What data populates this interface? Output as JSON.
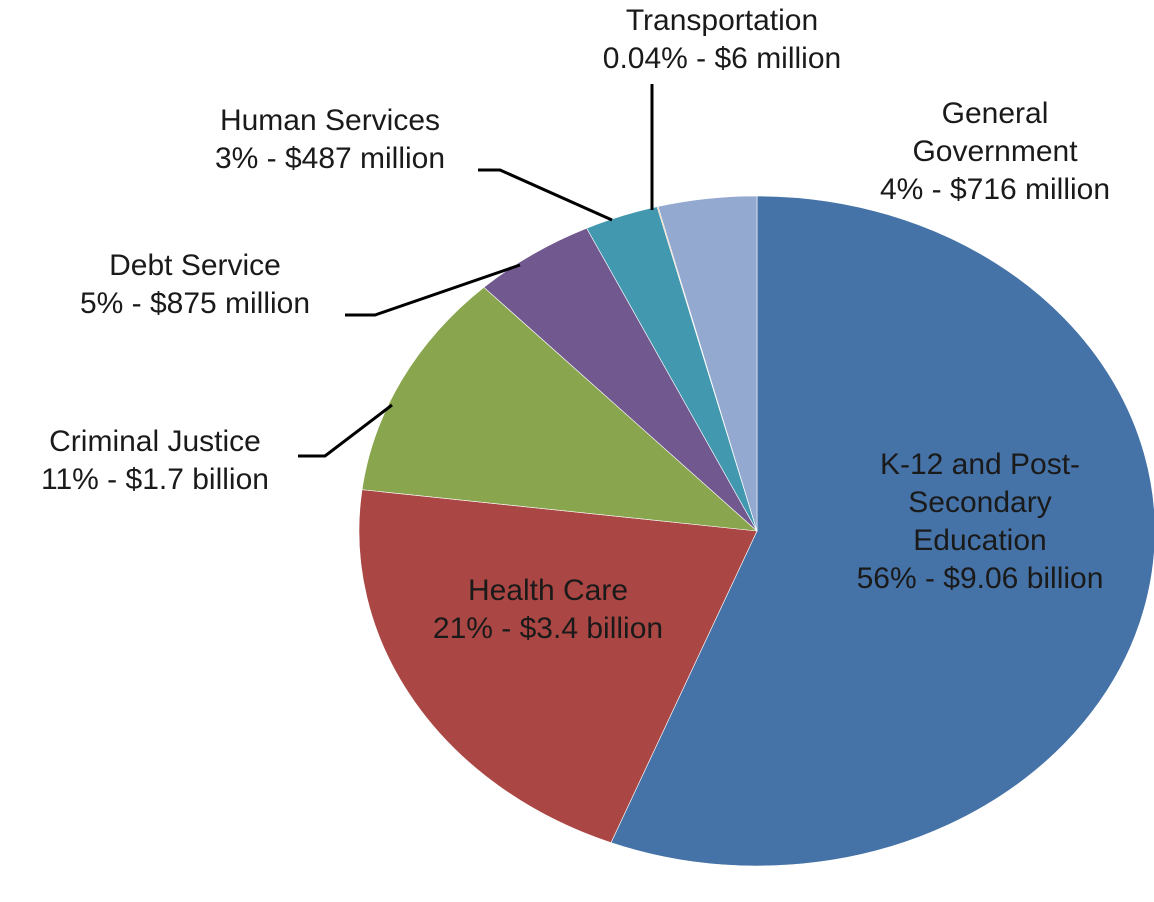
{
  "chart_data": {
    "type": "pie",
    "categories": [
      "K-12 and Post-Secondary Education",
      "Health Care",
      "Criminal Justice",
      "Debt Service",
      "Human Services",
      "Transportation",
      "General Government"
    ],
    "values": [
      56,
      21,
      11,
      5,
      3,
      0.04,
      4
    ],
    "value_labels": [
      "56% - $9.06 billion",
      "21% - $3.4 billion",
      "11% - $1.7 billion",
      "5% - $875 million",
      "3% - $487 million",
      "0.04% - $6 million",
      "4% - $716 million"
    ],
    "colors": [
      "#4572a7",
      "#aa4643",
      "#89a54e",
      "#71588f",
      "#4198af",
      "#db843d",
      "#93a9cf"
    ]
  }
}
